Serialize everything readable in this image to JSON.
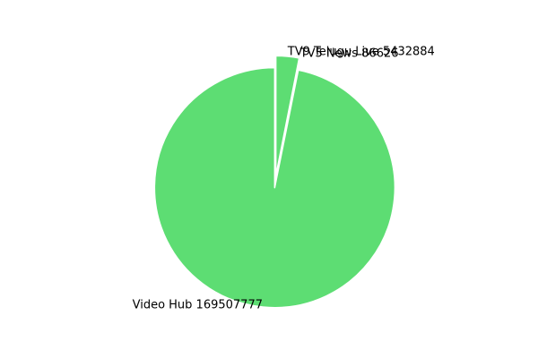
{
  "chart_data": {
    "type": "pie",
    "labels": [
      "TV9 Telugu Live",
      "TV5 News",
      "Video Hub"
    ],
    "values": [
      5432884,
      86626,
      169507777
    ],
    "label_texts": [
      "TV9 Telugu Live 5432884",
      "TV5 News 86626",
      "Video Hub 169507777"
    ],
    "display_order": [
      2,
      1,
      0
    ],
    "colors": [
      "#5ddd73",
      "#5ddd73",
      "#5ddd73"
    ],
    "edge_color": "#ffffff",
    "title": "",
    "legend": "none",
    "start_angle_deg": 90,
    "direction": "clockwise",
    "labels_at_edge": true
  }
}
